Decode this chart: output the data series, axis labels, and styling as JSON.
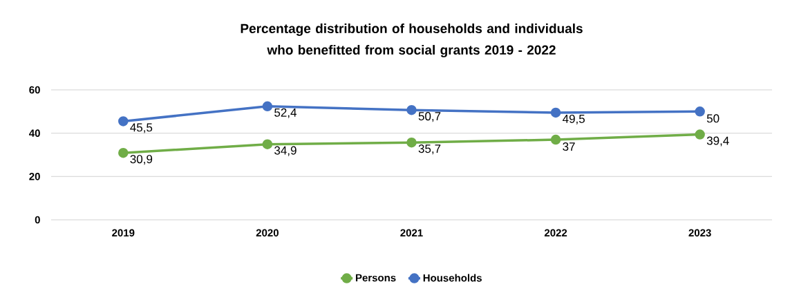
{
  "chart_data": {
    "type": "line",
    "title": "Percentage distribution of households and individuals who benefitted from social grants 2019 - 2022",
    "categories": [
      "2019",
      "2020",
      "2021",
      "2022",
      "2023"
    ],
    "series": [
      {
        "name": "Persons",
        "color": "#70ad47",
        "values": [
          30.9,
          34.9,
          35.7,
          37,
          39.4
        ],
        "value_labels": [
          "30,9",
          "34,9",
          "35,7",
          "37",
          "39,4"
        ]
      },
      {
        "name": "Households",
        "color": "#4472c4",
        "values": [
          45.5,
          52.4,
          50.7,
          49.5,
          50
        ],
        "value_labels": [
          "45,5",
          "52,4",
          "50,7",
          "49,5",
          "50"
        ]
      }
    ],
    "ylim": [
      0,
      60
    ],
    "yticks": [
      0,
      20,
      40,
      60
    ],
    "grid": "y",
    "legend": "bottom",
    "marker": "circle",
    "line_style": "solid"
  }
}
